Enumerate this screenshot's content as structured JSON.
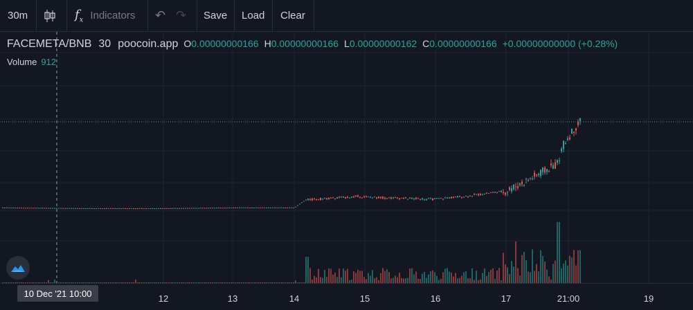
{
  "toolbar": {
    "interval": "30m",
    "indicators_label": "Indicators",
    "save_label": "Save",
    "load_label": "Load",
    "clear_label": "Clear"
  },
  "legend": {
    "symbol": "FACEMETA/BNB",
    "interval": "30",
    "source": "poocoin.app",
    "o_label": "O",
    "o_value": "0.00000000166",
    "h_label": "H",
    "h_value": "0.00000000166",
    "l_label": "L",
    "l_value": "0.00000000162",
    "c_label": "C",
    "c_value": "0.00000000166",
    "change": "+0.00000000000 (+0.28%)"
  },
  "volume": {
    "label": "Volume",
    "value": "912"
  },
  "crosshair_label": "10 Dec '21   10:00",
  "x_ticks": [
    "12",
    "13",
    "14",
    "15",
    "16",
    "17",
    "21:00",
    "19"
  ],
  "colors": {
    "up": "#26a69a",
    "down": "#ef5350",
    "bg": "#131722",
    "grid": "#1f2330"
  },
  "chart_data": {
    "type": "candlestick",
    "y_axis": "price",
    "x_ticks": [
      "12",
      "13",
      "14",
      "15",
      "16",
      "17",
      "21:00",
      "19"
    ],
    "last_close_line": 1.66e-09,
    "series": [
      {
        "x": "10",
        "close": 4.2e-10
      },
      {
        "x": "11",
        "close": 4.1e-10
      },
      {
        "x": "12",
        "close": 4.1e-10
      },
      {
        "x": "13",
        "close": 4.2e-10
      },
      {
        "x": "14",
        "close": 4.2e-10
      },
      {
        "x": "14.2",
        "close": 5.3e-10
      },
      {
        "x": "14.8",
        "close": 5.8e-10
      },
      {
        "x": "15",
        "close": 5.7e-10
      },
      {
        "x": "16",
        "close": 5.4e-10
      },
      {
        "x": "16.5",
        "close": 5.8e-10
      },
      {
        "x": "17",
        "close": 6.6e-10
      },
      {
        "x": "17.3",
        "close": 8e-10
      },
      {
        "x": "18",
        "close": 1.05e-09
      },
      {
        "x": "18.1",
        "close": 1.35e-09
      },
      {
        "x": "18.3",
        "close": 1.66e-09
      }
    ]
  }
}
